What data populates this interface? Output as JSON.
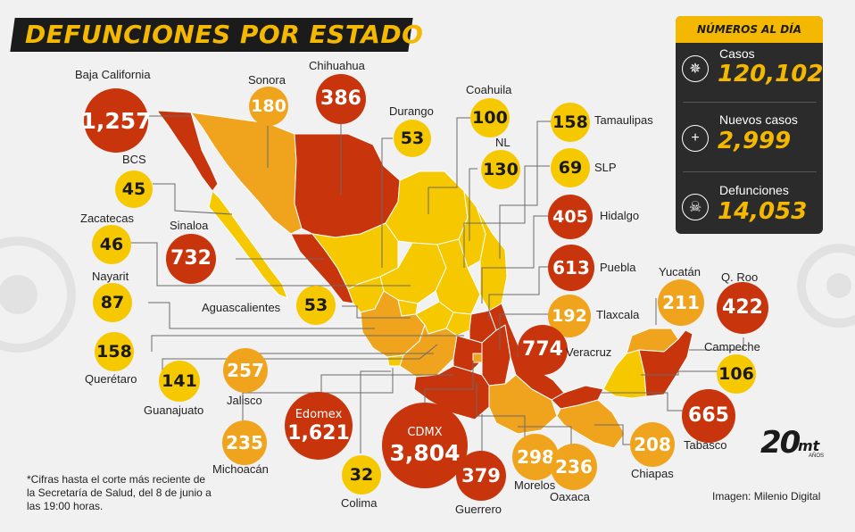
{
  "title": "DEFUNCIONES POR ESTADO",
  "colors": {
    "yellow": "#f6c800",
    "orange": "#f0a41e",
    "red": "#c8340c",
    "dark": "#2b2b2b",
    "accent": "#f5b800",
    "background": "#f1f1f1"
  },
  "panel": {
    "header": "NÚMEROS AL DÍA",
    "stats": [
      {
        "label": "Casos",
        "value": "120,102",
        "icon": "virus-icon"
      },
      {
        "label": "Nuevos casos",
        "value": "2,999",
        "icon": "plus-icon"
      },
      {
        "label": "Defunciones",
        "value": "14,053",
        "icon": "skull-icon"
      }
    ]
  },
  "states": [
    {
      "name": "Baja California",
      "value": "1,257",
      "level": "red"
    },
    {
      "name": "BCS",
      "value": "45",
      "level": "yellow"
    },
    {
      "name": "Zacatecas",
      "value": "46",
      "level": "yellow"
    },
    {
      "name": "Nayarit",
      "value": "87",
      "level": "yellow"
    },
    {
      "name": "Querétaro",
      "value": "158",
      "level": "yellow"
    },
    {
      "name": "Guanajuato",
      "value": "141",
      "level": "yellow"
    },
    {
      "name": "Sonora",
      "value": "180",
      "level": "orange"
    },
    {
      "name": "Sinaloa",
      "value": "732",
      "level": "red"
    },
    {
      "name": "Chihuahua",
      "value": "386",
      "level": "red"
    },
    {
      "name": "Durango",
      "value": "53",
      "level": "yellow"
    },
    {
      "name": "Coahuila",
      "value": "100",
      "level": "yellow"
    },
    {
      "name": "NL",
      "value": "130",
      "level": "yellow"
    },
    {
      "name": "Aguascalientes",
      "value": "53",
      "level": "yellow"
    },
    {
      "name": "Tamaulipas",
      "value": "158",
      "level": "yellow"
    },
    {
      "name": "SLP",
      "value": "69",
      "level": "yellow"
    },
    {
      "name": "Hidalgo",
      "value": "405",
      "level": "red"
    },
    {
      "name": "Puebla",
      "value": "613",
      "level": "red"
    },
    {
      "name": "Tlaxcala",
      "value": "192",
      "level": "orange"
    },
    {
      "name": "Veracruz",
      "value": "774",
      "level": "red"
    },
    {
      "name": "Jalisco",
      "value": "257",
      "level": "orange"
    },
    {
      "name": "Michoacán",
      "value": "235",
      "level": "orange"
    },
    {
      "name": "Edomex",
      "value": "1,621",
      "level": "red"
    },
    {
      "name": "CDMX",
      "value": "3,804",
      "level": "red"
    },
    {
      "name": "Colima",
      "value": "32",
      "level": "yellow"
    },
    {
      "name": "Guerrero",
      "value": "379",
      "level": "red"
    },
    {
      "name": "Morelos",
      "value": "298",
      "level": "orange"
    },
    {
      "name": "Oaxaca",
      "value": "236",
      "level": "orange"
    },
    {
      "name": "Chiapas",
      "value": "208",
      "level": "orange"
    },
    {
      "name": "Yucatán",
      "value": "211",
      "level": "orange"
    },
    {
      "name": "Q. Roo",
      "value": "422",
      "level": "red"
    },
    {
      "name": "Campeche",
      "value": "106",
      "level": "yellow"
    },
    {
      "name": "Tabasco",
      "value": "665",
      "level": "red"
    }
  ],
  "note": "*Cifras hasta el corte más reciente de la Secretaría de Salud, del 8 de junio a las 19:00 horas.",
  "credit": "Imagen: Milenio Digital",
  "logo": {
    "number": "20",
    "brand": "mt",
    "sub": "AÑOS"
  }
}
